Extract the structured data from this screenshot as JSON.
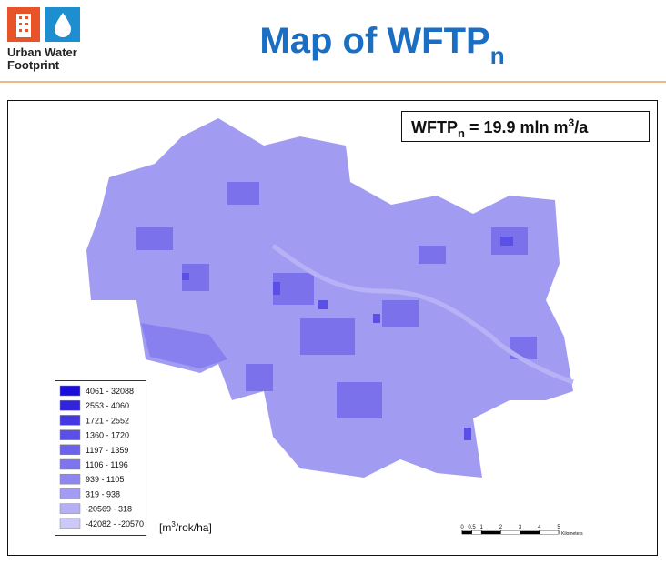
{
  "header": {
    "logo_lines": [
      "Urban Water",
      "Footprint"
    ],
    "title": "Map of WFTP",
    "title_sub": "n"
  },
  "summary": {
    "label": "WFTP",
    "label_sub": "n",
    "text": " = 19.9 mln m",
    "sup": "3",
    "tail": "/a"
  },
  "legend": {
    "items": [
      {
        "label": "4061 - 32088",
        "color": "#1a0fd8"
      },
      {
        "label": "2553 - 4060",
        "color": "#3024de"
      },
      {
        "label": "1721 - 2552",
        "color": "#4438e2"
      },
      {
        "label": "1360 - 1720",
        "color": "#5a4fe6"
      },
      {
        "label": "1197 - 1359",
        "color": "#6d63ea"
      },
      {
        "label": "1106 - 1196",
        "color": "#7e75ec"
      },
      {
        "label": "939 - 1105",
        "color": "#8f87ef"
      },
      {
        "label": "319 - 938",
        "color": "#a29cf2"
      },
      {
        "label": "-20569 - 318",
        "color": "#b5b0f5"
      },
      {
        "label": "-42082 - -20570",
        "color": "#ccc9f8"
      }
    ]
  },
  "units": {
    "text": "[m",
    "sup": "3",
    "tail": "/rok/ha]"
  },
  "scale_bar": {
    "ticks": [
      0,
      0.5,
      1,
      2,
      3,
      4,
      5
    ],
    "unit": "Kilometers"
  }
}
